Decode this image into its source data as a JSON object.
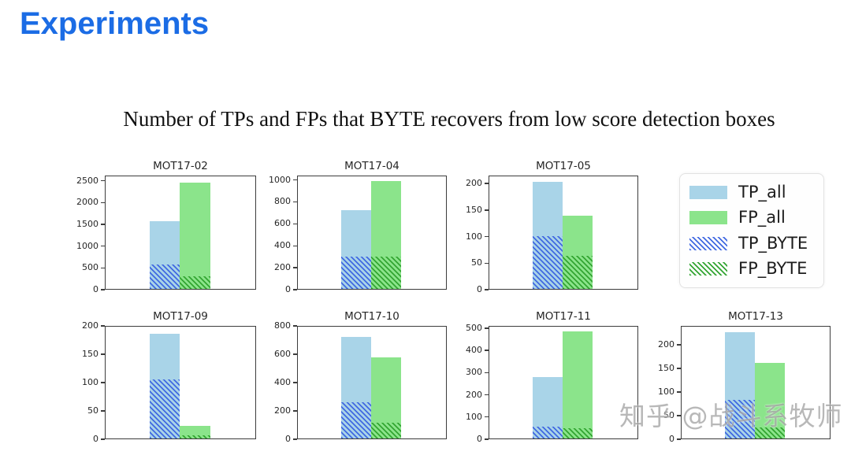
{
  "header": {
    "title": "Experiments",
    "accent_color": "#1b6ce5"
  },
  "figure": {
    "caption": "Number of TPs and FPs that BYTE recovers from low score detection boxes"
  },
  "legend": {
    "items": [
      {
        "label": "TP_all",
        "series": "tp_all"
      },
      {
        "label": "FP_all",
        "series": "fp_all"
      },
      {
        "label": "TP_BYTE",
        "series": "tp_byte"
      },
      {
        "label": "FP_BYTE",
        "series": "fp_byte"
      }
    ],
    "position": "top-right"
  },
  "colors": {
    "tp_all": "#a9d4e8",
    "fp_all": "#8be48b",
    "tp_byte": "#4169e1",
    "fp_byte": "#33a532",
    "axis": "#3c3c3c",
    "title_accent": "#1b6ce5"
  },
  "watermark": {
    "text": "知乎 @战斗系牧师"
  },
  "chart_data": [
    {
      "type": "bar",
      "title": "MOT17-02",
      "ylim": [
        0,
        2620
      ],
      "yticks": [
        0,
        500,
        1000,
        1500,
        2000,
        2500
      ],
      "grid": false,
      "series": [
        {
          "name": "TP_all",
          "value": 1580
        },
        {
          "name": "FP_all",
          "value": 2480
        },
        {
          "name": "TP_BYTE",
          "value": 560
        },
        {
          "name": "FP_BYTE",
          "value": 300
        }
      ]
    },
    {
      "type": "bar",
      "title": "MOT17-04",
      "ylim": [
        0,
        1040
      ],
      "yticks": [
        0,
        200,
        400,
        600,
        800,
        1000
      ],
      "grid": false,
      "series": [
        {
          "name": "TP_all",
          "value": 730
        },
        {
          "name": "FP_all",
          "value": 1000
        },
        {
          "name": "TP_BYTE",
          "value": 295
        },
        {
          "name": "FP_BYTE",
          "value": 295
        }
      ]
    },
    {
      "type": "bar",
      "title": "MOT17-05",
      "ylim": [
        0,
        215
      ],
      "yticks": [
        0,
        50,
        100,
        150,
        200
      ],
      "grid": false,
      "series": [
        {
          "name": "TP_all",
          "value": 205
        },
        {
          "name": "FP_all",
          "value": 140
        },
        {
          "name": "TP_BYTE",
          "value": 101
        },
        {
          "name": "FP_BYTE",
          "value": 63
        }
      ]
    },
    {
      "type": "bar",
      "title": "MOT17-09",
      "ylim": [
        0,
        200
      ],
      "yticks": [
        0,
        50,
        100,
        150,
        200
      ],
      "grid": false,
      "series": [
        {
          "name": "TP_all",
          "value": 187
        },
        {
          "name": "FP_all",
          "value": 22
        },
        {
          "name": "TP_BYTE",
          "value": 106
        },
        {
          "name": "FP_BYTE",
          "value": 6
        }
      ]
    },
    {
      "type": "bar",
      "title": "MOT17-10",
      "ylim": [
        0,
        800
      ],
      "yticks": [
        0,
        200,
        400,
        600,
        800
      ],
      "grid": false,
      "series": [
        {
          "name": "TP_all",
          "value": 728
        },
        {
          "name": "FP_all",
          "value": 578
        },
        {
          "name": "TP_BYTE",
          "value": 258
        },
        {
          "name": "FP_BYTE",
          "value": 113
        }
      ]
    },
    {
      "type": "bar",
      "title": "MOT17-11",
      "ylim": [
        0,
        510
      ],
      "yticks": [
        0,
        100,
        200,
        300,
        400,
        500
      ],
      "grid": false,
      "series": [
        {
          "name": "TP_all",
          "value": 280
        },
        {
          "name": "FP_all",
          "value": 490
        },
        {
          "name": "TP_BYTE",
          "value": 53
        },
        {
          "name": "FP_BYTE",
          "value": 46
        }
      ]
    },
    {
      "type": "bar",
      "title": "MOT17-13",
      "ylim": [
        0,
        240
      ],
      "yticks": [
        0,
        50,
        100,
        150,
        200
      ],
      "grid": false,
      "series": [
        {
          "name": "TP_all",
          "value": 228
        },
        {
          "name": "FP_all",
          "value": 163
        },
        {
          "name": "TP_BYTE",
          "value": 83
        },
        {
          "name": "FP_BYTE",
          "value": 23
        }
      ]
    }
  ]
}
